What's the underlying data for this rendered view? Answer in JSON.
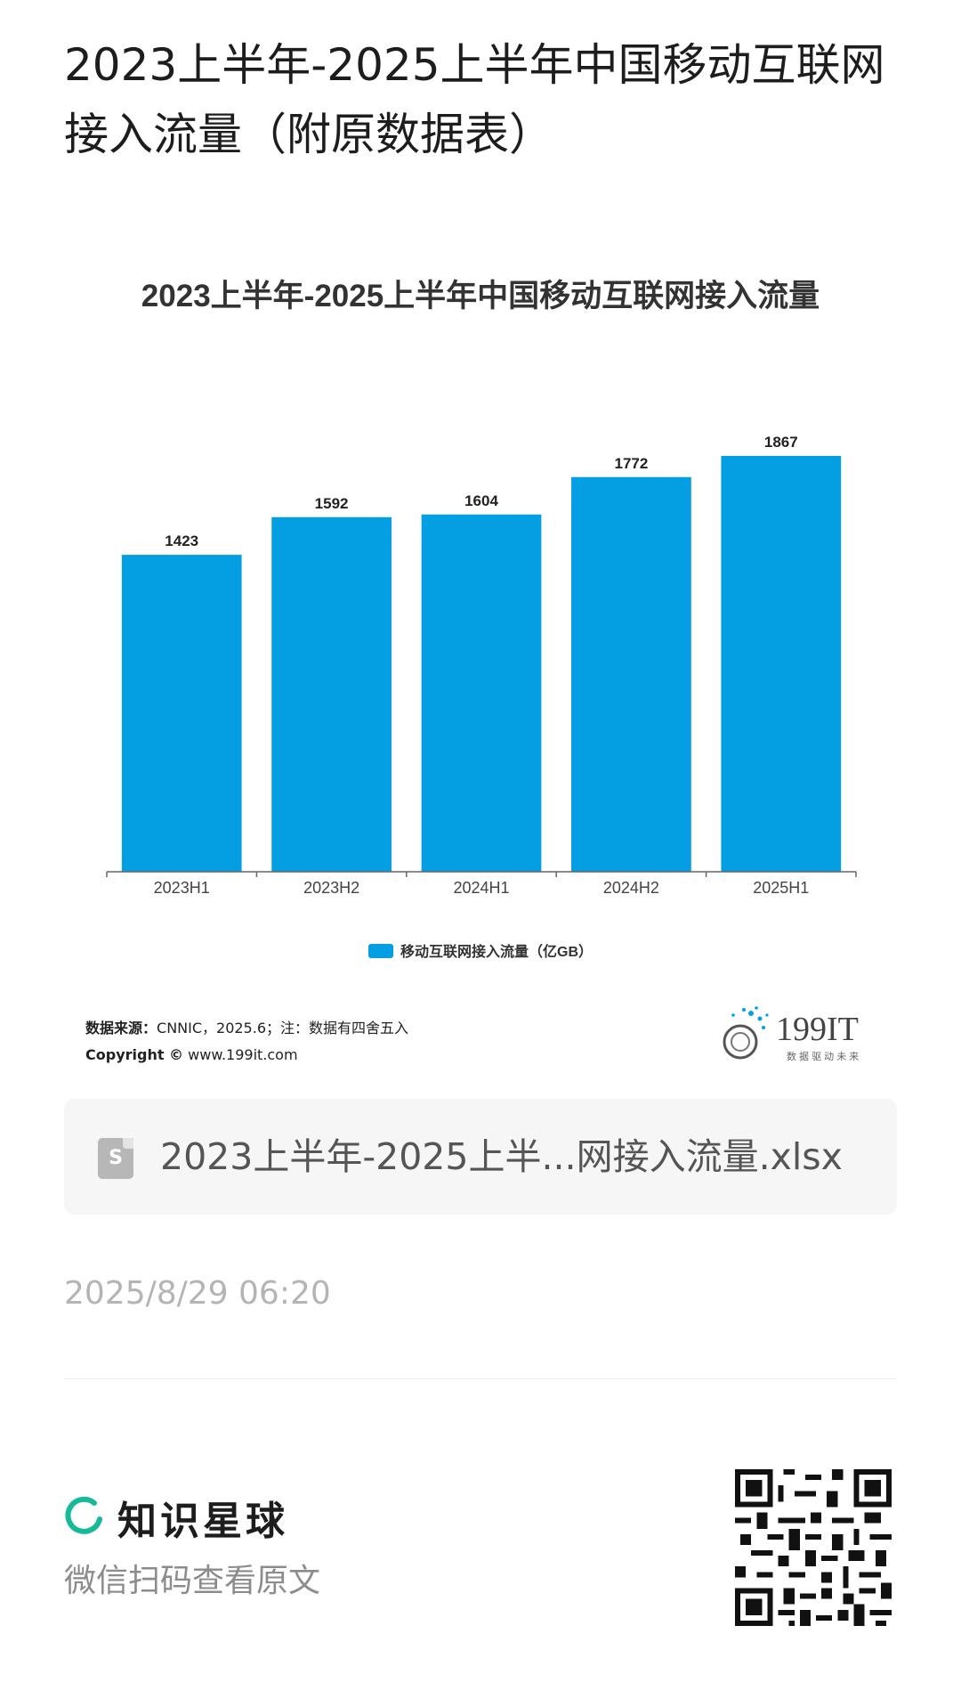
{
  "page": {
    "title": "2023上半年-2025上半年中国移动互联网接入流量（附原数据表）"
  },
  "chart_data": {
    "type": "bar",
    "title": "2023上半年-2025上半年中国移动互联网接入流量",
    "categories": [
      "2023H1",
      "2023H2",
      "2024H1",
      "2024H2",
      "2025H1"
    ],
    "series": [
      {
        "name": "移动互联网接入流量（亿GB）",
        "values": [
          1423,
          1592,
          1604,
          1772,
          1867
        ],
        "color": "#049fe2"
      }
    ],
    "data_labels": [
      "1423",
      "1592",
      "1604",
      "1772",
      "1867"
    ],
    "ylim": [
      0,
      1867
    ],
    "grid": false,
    "legend_position": "bottom"
  },
  "source": {
    "label": "数据来源：",
    "text": "CNNIC，2025.6；注：数据有四舍五入",
    "copyright_label": "Copyright ©",
    "copyright_url": "www.199it.com"
  },
  "brand": {
    "logo_text": "199IT",
    "tagline": "数 据 驱 动 未 来"
  },
  "attachment": {
    "icon": "spreadsheet-file-icon",
    "icon_letter": "S",
    "filename": "2023上半年-2025上半...网接入流量.xlsx"
  },
  "timestamp": "2025/8/29 06:20",
  "footer": {
    "app_name": "知识星球",
    "hint": "微信扫码查看原文",
    "qr_icon": "qr-code-icon"
  }
}
